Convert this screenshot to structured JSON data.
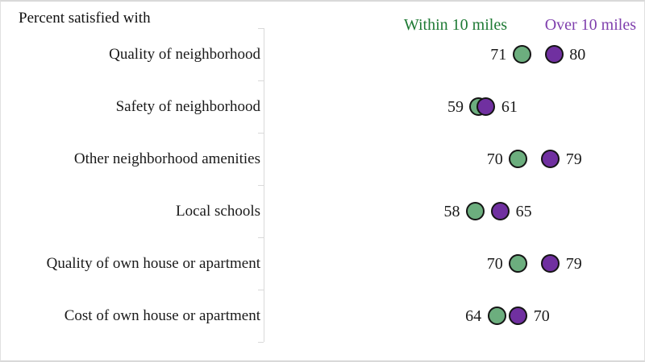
{
  "page": {
    "background": "#ffffff",
    "border_color": "#d9d9d9"
  },
  "title": {
    "text": "Percent satisfied with"
  },
  "legend": {
    "items": [
      {
        "label": "Within 10 miles",
        "text_color": "#1e7a34"
      },
      {
        "label": "Over 10 miles",
        "text_color": "#7f3fad"
      }
    ],
    "position": "top-right"
  },
  "chart_data": {
    "type": "scatter",
    "variant": "horizontal-dot-plot",
    "title": "Percent satisfied with",
    "categories": [
      "Quality of neighborhood",
      "Safety of neighborhood",
      "Other neighborhood amenities",
      "Local schools",
      "Quality of own house or apartment",
      "Cost of own house or apartment"
    ],
    "series": [
      {
        "name": "Within 10 miles",
        "marker_color": "#6cae7e",
        "values": [
          71,
          59,
          70,
          58,
          70,
          64
        ]
      },
      {
        "name": "Over 10 miles",
        "marker_color": "#7030a0",
        "values": [
          80,
          61,
          79,
          65,
          79,
          70
        ]
      }
    ],
    "xlim": [
      0,
      100
    ],
    "value_labels": true,
    "grid": false,
    "category_axis": {
      "color": "#d9d9d9",
      "ticks": "category-boundaries",
      "side": "left-of-plot"
    },
    "marker_outline_color": "#141414"
  }
}
